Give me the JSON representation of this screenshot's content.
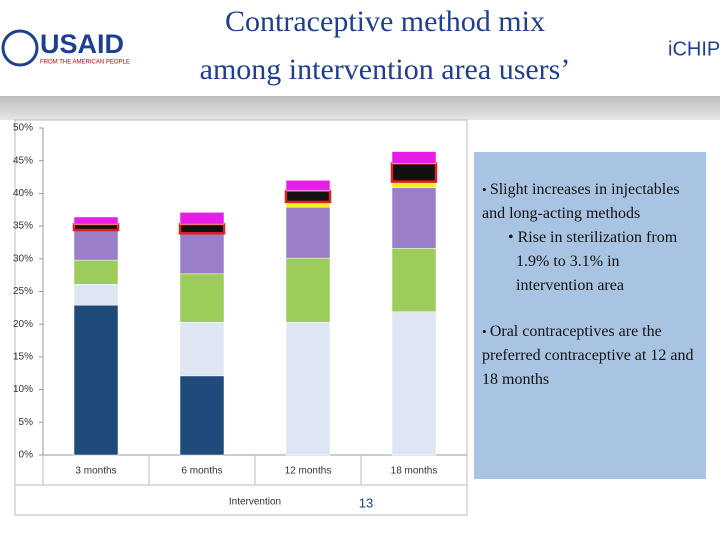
{
  "header": {
    "title_line1": "Contraceptive method mix",
    "title_line2": "among intervention area users’",
    "left_logo": "USAID",
    "left_logo_tagline": "FROM THE AMERICAN PEOPLE",
    "right_logo": "iCHIP"
  },
  "chart_data": {
    "type": "stacked_bar",
    "categories": [
      "3 months",
      "6 months",
      "12 months",
      "18 months"
    ],
    "x_label": "Intervention",
    "series": [
      {
        "color": "#1f4a7a",
        "values": [
          22.9,
          12.1,
          0,
          0
        ]
      },
      {
        "color": "#dde6f2",
        "values": [
          3.2,
          8.2,
          20.3,
          21.9
        ]
      },
      {
        "color": "#9ccc5a",
        "values": [
          3.7,
          7.4,
          9.8,
          9.7
        ]
      },
      {
        "color": "#9a7fc8",
        "values": [
          4.6,
          6.2,
          7.8,
          9.3
        ]
      },
      {
        "color": "#f5f01e",
        "values": [
          0,
          0,
          0.8,
          0.9
        ]
      },
      {
        "color": "#111111",
        "outline": "#e02020",
        "values": [
          0.9,
          1.4,
          1.7,
          2.8
        ]
      },
      {
        "color": "#e61ee6",
        "values": [
          1.1,
          1.8,
          1.6,
          1.8
        ]
      }
    ],
    "ylim": [
      0,
      50
    ],
    "yticks": [
      {
        "value": 0,
        "label": "0%"
      },
      {
        "value": 5,
        "label": "5%"
      },
      {
        "value": 10,
        "label": "10%"
      },
      {
        "value": 15,
        "label": "15%"
      },
      {
        "value": 20,
        "label": "20%"
      },
      {
        "value": 25,
        "label": "25%"
      },
      {
        "value": 30,
        "label": "30%"
      },
      {
        "value": 35,
        "label": "35%"
      },
      {
        "value": 40,
        "label": "40%"
      },
      {
        "value": 45,
        "label": "45%"
      },
      {
        "value": 50,
        "label": "50%"
      }
    ],
    "grid": false
  },
  "callout": {
    "bullet1": "Slight increases in injectables and long-acting methods",
    "sub_bullet": "Rise in sterilization from 1.9% to 3.1% in intervention area",
    "bullet2": "Oral contraceptives are the preferred contraceptive at 12 and 18 months"
  },
  "page_number": "13"
}
